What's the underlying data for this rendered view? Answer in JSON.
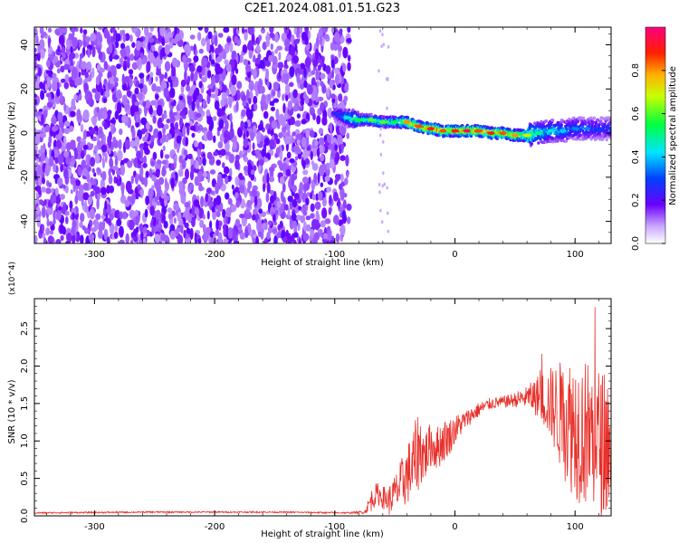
{
  "title": "C2E1.2024.081.01.51.G23",
  "colors": {
    "snr_line": "#e8302a",
    "noise_purple": "#7a1fff",
    "axis": "#000000"
  },
  "chart_data": [
    {
      "type": "heatmap",
      "title": "C2E1.2024.081.01.51.G23",
      "xlabel": "Height of straight line (km)",
      "ylabel": "Frequency (Hz)",
      "xlim": [
        -350,
        130
      ],
      "ylim": [
        -50,
        48
      ],
      "x_ticks": [
        -300,
        -200,
        -100,
        0,
        100
      ],
      "y_ticks": [
        -40,
        -20,
        0,
        20,
        40
      ],
      "colorbar": {
        "label": "Normalized spectral amplitude",
        "range": [
          0,
          1
        ],
        "ticks": [
          "0.0",
          "0.2",
          "0.4",
          "0.6",
          "0.8"
        ],
        "colormap": "rainbow (white-violet-blue-cyan-green-yellow-red-magenta)"
      },
      "noise_region_x": [
        -350,
        -88
      ],
      "signal_ridge": {
        "name": "",
        "x": [
          -100,
          -90,
          -80,
          -70,
          -60,
          -50,
          -40,
          -30,
          -20,
          -10,
          0,
          10,
          20,
          30,
          40,
          50,
          60,
          70,
          80,
          90,
          100,
          110,
          120,
          130
        ],
        "freq": [
          9,
          7,
          6,
          6,
          5,
          5,
          5,
          3,
          2,
          1,
          1,
          1,
          1,
          0,
          0,
          -1,
          -1,
          0,
          1,
          1,
          2,
          2,
          2,
          2
        ],
        "peak_amplitude": [
          0.25,
          0.45,
          0.55,
          0.6,
          0.6,
          0.55,
          0.8,
          0.85,
          0.9,
          0.85,
          0.9,
          0.95,
          0.85,
          0.9,
          0.85,
          0.8,
          0.7,
          0.5,
          0.45,
          0.4,
          0.35,
          0.35,
          0.3,
          0.3
        ]
      }
    },
    {
      "type": "line",
      "xlabel": "Height of straight line (km)",
      "ylabel": "SNR (10 * v/v)",
      "y_multiplier": "(x10^4)",
      "xlim": [
        -350,
        130
      ],
      "ylim": [
        0,
        2.9
      ],
      "x_ticks": [
        -300,
        -200,
        -100,
        0,
        100
      ],
      "y_ticks": [
        "0.0",
        "0.5",
        "1.0",
        "1.5",
        "2.0",
        "2.5"
      ],
      "series": [
        {
          "name": "",
          "x": [
            -350,
            -250,
            -150,
            -90,
            -75,
            -70,
            -65,
            -60,
            -55,
            -50,
            -45,
            -40,
            -35,
            -30,
            -25,
            -20,
            -15,
            -10,
            -5,
            0,
            10,
            20,
            30,
            40,
            50,
            60,
            70,
            80,
            90,
            100,
            110,
            120,
            130
          ],
          "mean": [
            0.04,
            0.05,
            0.05,
            0.04,
            0.05,
            0.2,
            0.3,
            0.25,
            0.2,
            0.3,
            0.4,
            0.55,
            0.65,
            0.9,
            0.8,
            0.95,
            0.9,
            1.0,
            1.05,
            1.15,
            1.3,
            1.42,
            1.5,
            1.52,
            1.55,
            1.58,
            1.6,
            1.5,
            1.3,
            1.2,
            1.1,
            1.0,
            0.9
          ],
          "spread": [
            0.01,
            0.01,
            0.01,
            0.01,
            0.02,
            0.15,
            0.15,
            0.15,
            0.2,
            0.25,
            0.35,
            0.4,
            0.5,
            0.55,
            0.35,
            0.3,
            0.3,
            0.3,
            0.25,
            0.2,
            0.12,
            0.1,
            0.08,
            0.08,
            0.1,
            0.15,
            0.3,
            0.5,
            0.8,
            1.0,
            1.0,
            1.0,
            0.9
          ]
        }
      ]
    }
  ]
}
